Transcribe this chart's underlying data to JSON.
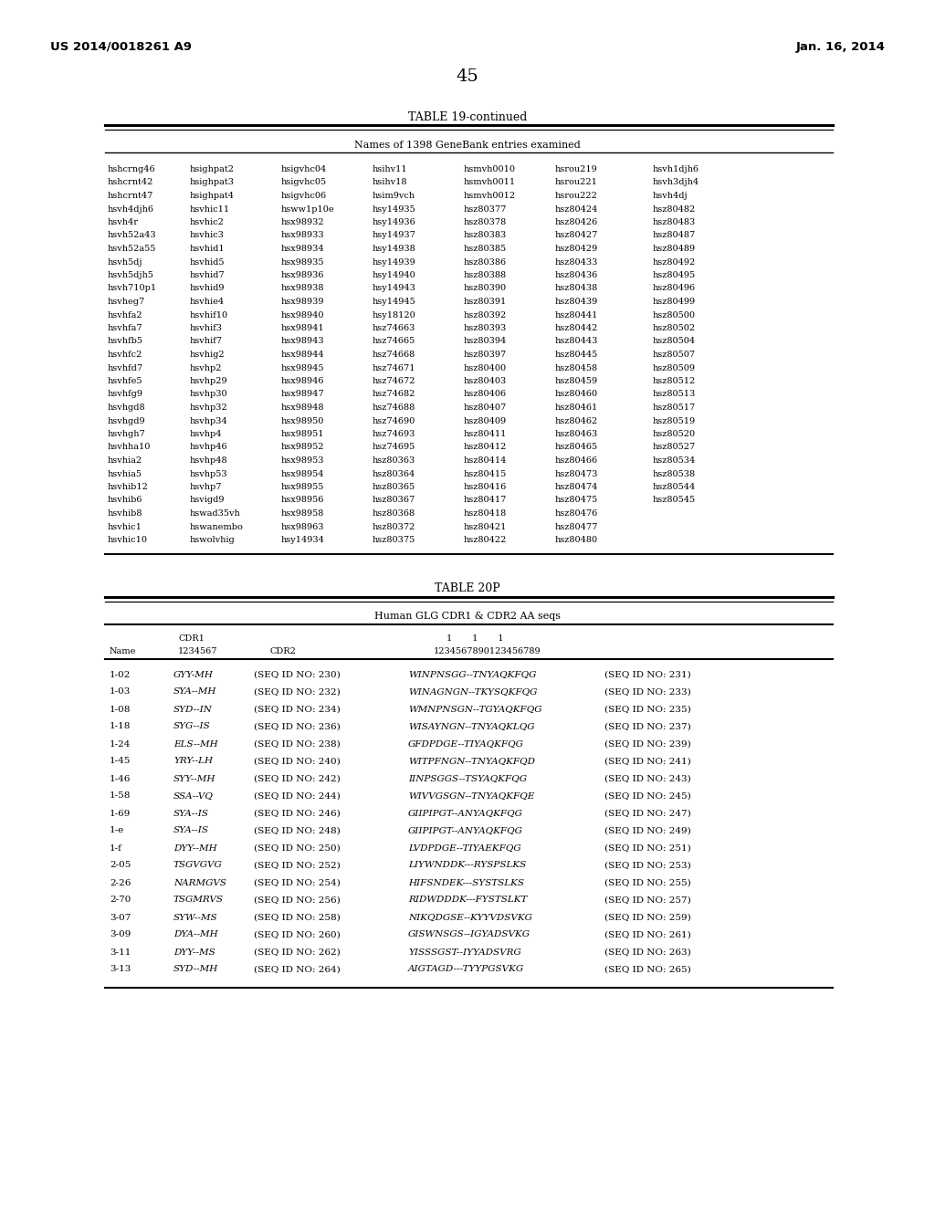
{
  "page_header_left": "US 2014/0018261 A9",
  "page_header_right": "Jan. 16, 2014",
  "page_number": "45",
  "table19_title": "TABLE 19-continued",
  "table19_subtitle": "Names of 1398 GeneBank entries examined",
  "table19_data": [
    [
      "hshcrng46",
      "hsighpat2",
      "hsigvhc04",
      "hsihv11",
      "hsmvh0010",
      "hsrou219",
      "hsvh1djh6"
    ],
    [
      "hshcrnt42",
      "hsighpat3",
      "hsigvhc05",
      "hsihv18",
      "hsmvh0011",
      "hsrou221",
      "hsvh3djh4"
    ],
    [
      "hshcrnt47",
      "hsighpat4",
      "hsigvhc06",
      "hsim9vch",
      "hsmvh0012",
      "hsrou222",
      "hsvh4dj"
    ],
    [
      "hsvh4djh6",
      "hsvhic11",
      "hsww1p10e",
      "hsy14935",
      "hsz80377",
      "hsz80424",
      "hsz80482"
    ],
    [
      "hsvh4r",
      "hsvhic2",
      "hsx98932",
      "hsy14936",
      "hsz80378",
      "hsz80426",
      "hsz80483"
    ],
    [
      "hsvh52a43",
      "hsvhic3",
      "hsx98933",
      "hsy14937",
      "hsz80383",
      "hsz80427",
      "hsz80487"
    ],
    [
      "hsvh52a55",
      "hsvhid1",
      "hsx98934",
      "hsy14938",
      "hsz80385",
      "hsz80429",
      "hsz80489"
    ],
    [
      "hsvh5dj",
      "hsvhid5",
      "hsx98935",
      "hsy14939",
      "hsz80386",
      "hsz80433",
      "hsz80492"
    ],
    [
      "hsvh5djh5",
      "hsvhid7",
      "hsx98936",
      "hsy14940",
      "hsz80388",
      "hsz80436",
      "hsz80495"
    ],
    [
      "hsvh710p1",
      "hsvhid9",
      "hsx98938",
      "hsy14943",
      "hsz80390",
      "hsz80438",
      "hsz80496"
    ],
    [
      "hsvheg7",
      "hsvhie4",
      "hsx98939",
      "hsy14945",
      "hsz80391",
      "hsz80439",
      "hsz80499"
    ],
    [
      "hsvhfa2",
      "hsvhif10",
      "hsx98940",
      "hsy18120",
      "hsz80392",
      "hsz80441",
      "hsz80500"
    ],
    [
      "hsvhfa7",
      "hsvhif3",
      "hsx98941",
      "hsz74663",
      "hsz80393",
      "hsz80442",
      "hsz80502"
    ],
    [
      "hsvhfb5",
      "hsvhif7",
      "hsx98943",
      "hsz74665",
      "hsz80394",
      "hsz80443",
      "hsz80504"
    ],
    [
      "hsvhfc2",
      "hsvhig2",
      "hsx98944",
      "hsz74668",
      "hsz80397",
      "hsz80445",
      "hsz80507"
    ],
    [
      "hsvhfd7",
      "hsvhp2",
      "hsx98945",
      "hsz74671",
      "hsz80400",
      "hsz80458",
      "hsz80509"
    ],
    [
      "hsvhfe5",
      "hsvhp29",
      "hsx98946",
      "hsz74672",
      "hsz80403",
      "hsz80459",
      "hsz80512"
    ],
    [
      "hsvhfg9",
      "hsvhp30",
      "hsx98947",
      "hsz74682",
      "hsz80406",
      "hsz80460",
      "hsz80513"
    ],
    [
      "hsvhgd8",
      "hsvhp32",
      "hsx98948",
      "hsz74688",
      "hsz80407",
      "hsz80461",
      "hsz80517"
    ],
    [
      "hsvhgd9",
      "hsvhp34",
      "hsx98950",
      "hsz74690",
      "hsz80409",
      "hsz80462",
      "hsz80519"
    ],
    [
      "hsvhgh7",
      "hsvhp4",
      "hsx98951",
      "hsz74693",
      "hsz80411",
      "hsz80463",
      "hsz80520"
    ],
    [
      "hsvhha10",
      "hsvhp46",
      "hsx98952",
      "hsz74695",
      "hsz80412",
      "hsz80465",
      "hsz80527"
    ],
    [
      "hsvhia2",
      "hsvhp48",
      "hsx98953",
      "hsz80363",
      "hsz80414",
      "hsz80466",
      "hsz80534"
    ],
    [
      "hsvhia5",
      "hsvhp53",
      "hsx98954",
      "hsz80364",
      "hsz80415",
      "hsz80473",
      "hsz80538"
    ],
    [
      "hsvhib12",
      "hsvhp7",
      "hsx98955",
      "hsz80365",
      "hsz80416",
      "hsz80474",
      "hsz80544"
    ],
    [
      "hsvhib6",
      "hsvigd9",
      "hsx98956",
      "hsz80367",
      "hsz80417",
      "hsz80475",
      "hsz80545"
    ],
    [
      "hsvhib8",
      "hswad35vh",
      "hsx98958",
      "hsz80368",
      "hsz80418",
      "hsz80476",
      ""
    ],
    [
      "hsvhic1",
      "hswanembo",
      "hsx98963",
      "hsz80372",
      "hsz80421",
      "hsz80477",
      ""
    ],
    [
      "hsvhic10",
      "hswolvhig",
      "hsy14934",
      "hsz80375",
      "hsz80422",
      "hsz80480",
      ""
    ]
  ],
  "table20_title": "TABLE 20P",
  "table20_subtitle": "Human GLG CDR1 & CDR2 AA seqs",
  "table20_data": [
    [
      "1-02",
      "GYY-MH",
      "(SEQ ID NO: 230)",
      "WINPNSGG--TNYAQKFQG",
      "(SEQ ID NO: 231)"
    ],
    [
      "1-03",
      "SYA--MH",
      "(SEQ ID NO: 232)",
      "WINAGNGN--TKYSQKFQG",
      "(SEQ ID NO: 233)"
    ],
    [
      "1-08",
      "SYD--IN",
      "(SEQ ID NO: 234)",
      "WMNPNSGN--TGYAQKFQG",
      "(SEQ ID NO: 235)"
    ],
    [
      "1-18",
      "SYG--IS",
      "(SEQ ID NO: 236)",
      "WISAYNGN--TNYAQKLQG",
      "(SEQ ID NO: 237)"
    ],
    [
      "1-24",
      "ELS--MH",
      "(SEQ ID NO: 238)",
      "GFDPDGE--TIYAQKFQG",
      "(SEQ ID NO: 239)"
    ],
    [
      "1-45",
      "YRY--LH",
      "(SEQ ID NO: 240)",
      "WITPFNGN--TNYAQKFQD",
      "(SEQ ID NO: 241)"
    ],
    [
      "1-46",
      "SYY--MH",
      "(SEQ ID NO: 242)",
      "IINPSGGS--TSYAQKFQG",
      "(SEQ ID NO: 243)"
    ],
    [
      "1-58",
      "SSA--VQ",
      "(SEQ ID NO: 244)",
      "WIVVGSGN--TNYAQKFQE",
      "(SEQ ID NO: 245)"
    ],
    [
      "1-69",
      "SYA--IS",
      "(SEQ ID NO: 246)",
      "GIIPIPGT--ANYAQKFQG",
      "(SEQ ID NO: 247)"
    ],
    [
      "1-e",
      "SYA--IS",
      "(SEQ ID NO: 248)",
      "GIIPIPGT--ANYAQKFQG",
      "(SEQ ID NO: 249)"
    ],
    [
      "1-f",
      "DYY--MH",
      "(SEQ ID NO: 250)",
      "LVDPDGE--TIYAEKFQG",
      "(SEQ ID NO: 251)"
    ],
    [
      "2-05",
      "TSGVGVG",
      "(SEQ ID NO: 252)",
      "LIYWNDDK---RYSPSLKS",
      "(SEQ ID NO: 253)"
    ],
    [
      "2-26",
      "NARMGVS",
      "(SEQ ID NO: 254)",
      "HIFSNDEK---SYSTSLKS",
      "(SEQ ID NO: 255)"
    ],
    [
      "2-70",
      "TSGMRVS",
      "(SEQ ID NO: 256)",
      "RIDWDDDK---FYSTSLKT",
      "(SEQ ID NO: 257)"
    ],
    [
      "3-07",
      "SYW--MS",
      "(SEQ ID NO: 258)",
      "NIKQDGSE--KYYVDSVKG",
      "(SEQ ID NO: 259)"
    ],
    [
      "3-09",
      "DYA--MH",
      "(SEQ ID NO: 260)",
      "GISWNSGS--IGYADSVKG",
      "(SEQ ID NO: 261)"
    ],
    [
      "3-11",
      "DYY--MS",
      "(SEQ ID NO: 262)",
      "YISSSGST--IYYADSVRG",
      "(SEQ ID NO: 263)"
    ],
    [
      "3-13",
      "SYD--MH",
      "(SEQ ID NO: 264)",
      "AIGTAGD---TYYPGSVKG",
      "(SEQ ID NO: 265)"
    ]
  ],
  "background_color": "#ffffff"
}
